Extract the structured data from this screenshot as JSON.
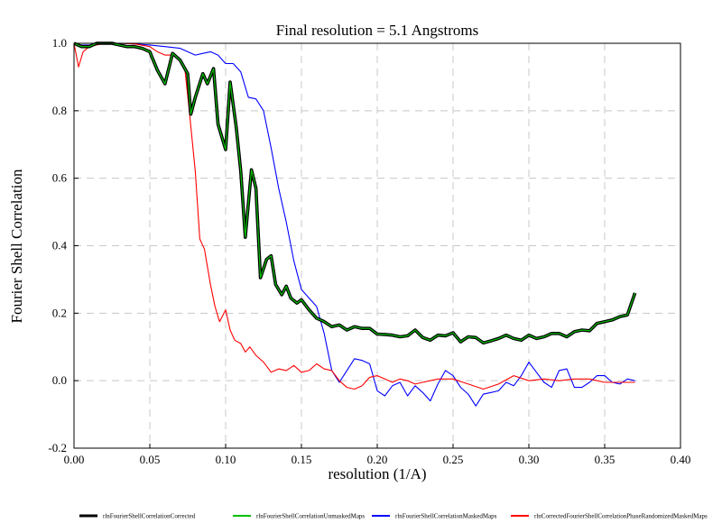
{
  "chart_data": {
    "type": "line",
    "title": "Final resolution =   5.1 Angstroms",
    "xlabel": "resolution (1/A)",
    "ylabel": "Fourier Shell Correlation",
    "xlim": [
      0.0,
      0.4
    ],
    "ylim": [
      -0.2,
      1.0
    ],
    "xticks": [
      "0.00",
      "0.05",
      "0.10",
      "0.15",
      "0.20",
      "0.25",
      "0.30",
      "0.35",
      "0.40"
    ],
    "yticks": [
      "-0.2",
      "0.0",
      "0.2",
      "0.4",
      "0.6",
      "0.8",
      "1.0"
    ],
    "grid": true,
    "legend_placement": "bottom",
    "series": [
      {
        "name": "rlnFourierShellCorrelationCorrected",
        "color": "#000000",
        "x": [
          0.0,
          0.005,
          0.01,
          0.015,
          0.02,
          0.025,
          0.03,
          0.035,
          0.04,
          0.045,
          0.05,
          0.055,
          0.06,
          0.065,
          0.07,
          0.075,
          0.077,
          0.08,
          0.085,
          0.088,
          0.092,
          0.095,
          0.1,
          0.103,
          0.107,
          0.11,
          0.113,
          0.117,
          0.12,
          0.123,
          0.127,
          0.13,
          0.133,
          0.137,
          0.14,
          0.143,
          0.147,
          0.15,
          0.155,
          0.16,
          0.165,
          0.17,
          0.175,
          0.18,
          0.185,
          0.19,
          0.195,
          0.2,
          0.205,
          0.21,
          0.215,
          0.22,
          0.225,
          0.23,
          0.235,
          0.24,
          0.245,
          0.25,
          0.255,
          0.26,
          0.265,
          0.27,
          0.275,
          0.28,
          0.285,
          0.29,
          0.295,
          0.3,
          0.305,
          0.31,
          0.315,
          0.32,
          0.325,
          0.33,
          0.335,
          0.34,
          0.345,
          0.35,
          0.355,
          0.36,
          0.365,
          0.37
        ],
        "values": [
          1.0,
          0.99,
          0.99,
          1.0,
          1.0,
          1.0,
          0.995,
          0.99,
          0.99,
          0.985,
          0.975,
          0.92,
          0.88,
          0.97,
          0.95,
          0.91,
          0.79,
          0.84,
          0.91,
          0.88,
          0.925,
          0.76,
          0.685,
          0.885,
          0.75,
          0.62,
          0.425,
          0.625,
          0.57,
          0.305,
          0.36,
          0.37,
          0.285,
          0.255,
          0.28,
          0.245,
          0.23,
          0.24,
          0.21,
          0.185,
          0.175,
          0.16,
          0.165,
          0.15,
          0.16,
          0.155,
          0.155,
          0.138,
          0.137,
          0.135,
          0.13,
          0.133,
          0.15,
          0.128,
          0.12,
          0.135,
          0.133,
          0.142,
          0.115,
          0.13,
          0.128,
          0.112,
          0.118,
          0.125,
          0.135,
          0.125,
          0.12,
          0.135,
          0.125,
          0.13,
          0.14,
          0.14,
          0.13,
          0.145,
          0.15,
          0.148,
          0.17,
          0.175,
          0.18,
          0.19,
          0.195,
          0.26
        ]
      },
      {
        "name": "rlnFourierShellCorrelationUnmaskedMaps",
        "color": "#00c000",
        "x": [
          0.0,
          0.005,
          0.01,
          0.015,
          0.02,
          0.025,
          0.03,
          0.035,
          0.04,
          0.045,
          0.05,
          0.055,
          0.06,
          0.065,
          0.07,
          0.075,
          0.077,
          0.08,
          0.085,
          0.088,
          0.092,
          0.095,
          0.1,
          0.103,
          0.107,
          0.11,
          0.113,
          0.117,
          0.12,
          0.123,
          0.127,
          0.13,
          0.133,
          0.137,
          0.14,
          0.143,
          0.147,
          0.15,
          0.155,
          0.16,
          0.165,
          0.17,
          0.175,
          0.18,
          0.185,
          0.19,
          0.195,
          0.2,
          0.205,
          0.21,
          0.215,
          0.22,
          0.225,
          0.23,
          0.235,
          0.24,
          0.245,
          0.25,
          0.255,
          0.26,
          0.265,
          0.27,
          0.275,
          0.28,
          0.285,
          0.29,
          0.295,
          0.3,
          0.305,
          0.31,
          0.315,
          0.32,
          0.325,
          0.33,
          0.335,
          0.34,
          0.345,
          0.35,
          0.355,
          0.36,
          0.365,
          0.37
        ],
        "values": [
          1.0,
          0.99,
          0.99,
          1.0,
          1.0,
          1.0,
          0.995,
          0.99,
          0.99,
          0.985,
          0.975,
          0.92,
          0.88,
          0.97,
          0.95,
          0.91,
          0.79,
          0.84,
          0.91,
          0.88,
          0.925,
          0.76,
          0.685,
          0.885,
          0.75,
          0.62,
          0.425,
          0.625,
          0.57,
          0.305,
          0.36,
          0.37,
          0.285,
          0.255,
          0.28,
          0.245,
          0.23,
          0.24,
          0.21,
          0.185,
          0.175,
          0.16,
          0.165,
          0.15,
          0.16,
          0.155,
          0.155,
          0.138,
          0.137,
          0.135,
          0.13,
          0.133,
          0.15,
          0.128,
          0.12,
          0.135,
          0.133,
          0.142,
          0.115,
          0.13,
          0.128,
          0.112,
          0.118,
          0.125,
          0.135,
          0.125,
          0.12,
          0.135,
          0.125,
          0.13,
          0.14,
          0.14,
          0.13,
          0.145,
          0.15,
          0.148,
          0.17,
          0.175,
          0.18,
          0.19,
          0.195,
          0.26
        ]
      },
      {
        "name": "rlnFourierShellCorrelationMaskedMaps",
        "color": "#0000ff",
        "x": [
          0.0,
          0.005,
          0.01,
          0.02,
          0.03,
          0.04,
          0.05,
          0.06,
          0.07,
          0.075,
          0.08,
          0.085,
          0.09,
          0.095,
          0.1,
          0.105,
          0.11,
          0.115,
          0.12,
          0.125,
          0.13,
          0.135,
          0.14,
          0.145,
          0.15,
          0.155,
          0.16,
          0.165,
          0.17,
          0.175,
          0.18,
          0.185,
          0.19,
          0.195,
          0.2,
          0.205,
          0.21,
          0.215,
          0.22,
          0.225,
          0.23,
          0.235,
          0.24,
          0.245,
          0.25,
          0.255,
          0.26,
          0.265,
          0.27,
          0.275,
          0.28,
          0.285,
          0.29,
          0.295,
          0.3,
          0.305,
          0.31,
          0.315,
          0.32,
          0.325,
          0.33,
          0.335,
          0.34,
          0.345,
          0.35,
          0.355,
          0.36,
          0.365,
          0.37
        ],
        "values": [
          1.0,
          0.995,
          0.995,
          1.0,
          1.0,
          0.998,
          0.995,
          0.99,
          0.985,
          0.975,
          0.965,
          0.97,
          0.975,
          0.965,
          0.94,
          0.94,
          0.915,
          0.84,
          0.835,
          0.8,
          0.69,
          0.57,
          0.47,
          0.355,
          0.27,
          0.245,
          0.22,
          0.14,
          0.03,
          -0.005,
          0.03,
          0.065,
          0.06,
          0.05,
          -0.03,
          -0.045,
          -0.015,
          -0.005,
          -0.045,
          -0.015,
          -0.035,
          -0.06,
          -0.01,
          0.03,
          0.015,
          -0.02,
          -0.04,
          -0.075,
          -0.04,
          -0.035,
          -0.03,
          -0.005,
          -0.015,
          0.015,
          0.055,
          0.025,
          -0.005,
          -0.02,
          0.03,
          0.035,
          -0.02,
          -0.02,
          -0.005,
          0.015,
          0.015,
          -0.005,
          -0.01,
          0.005,
          0.0
        ]
      },
      {
        "name": "rlnCorrectedFourierShellCorrelationPhaseRandomizedMaskedMaps",
        "color": "#ff0000",
        "x": [
          0.0,
          0.003,
          0.006,
          0.01,
          0.02,
          0.03,
          0.04,
          0.05,
          0.055,
          0.06,
          0.065,
          0.07,
          0.073,
          0.076,
          0.08,
          0.083,
          0.086,
          0.09,
          0.093,
          0.096,
          0.1,
          0.103,
          0.106,
          0.11,
          0.113,
          0.116,
          0.12,
          0.125,
          0.13,
          0.135,
          0.14,
          0.145,
          0.15,
          0.155,
          0.16,
          0.165,
          0.17,
          0.175,
          0.18,
          0.185,
          0.19,
          0.195,
          0.2,
          0.205,
          0.21,
          0.215,
          0.22,
          0.225,
          0.23,
          0.24,
          0.25,
          0.26,
          0.27,
          0.28,
          0.29,
          0.3,
          0.31,
          0.32,
          0.33,
          0.34,
          0.35,
          0.36,
          0.37
        ],
        "values": [
          1.0,
          0.93,
          0.975,
          0.99,
          1.0,
          1.0,
          0.998,
          0.99,
          0.975,
          0.965,
          0.965,
          0.95,
          0.93,
          0.8,
          0.62,
          0.42,
          0.39,
          0.285,
          0.22,
          0.175,
          0.21,
          0.15,
          0.12,
          0.11,
          0.085,
          0.1,
          0.075,
          0.055,
          0.025,
          0.035,
          0.03,
          0.045,
          0.025,
          0.03,
          0.05,
          0.035,
          0.03,
          0.0,
          -0.02,
          -0.025,
          -0.015,
          0.01,
          0.015,
          0.005,
          -0.005,
          0.005,
          0.0,
          -0.01,
          -0.005,
          0.005,
          0.005,
          -0.01,
          -0.025,
          -0.01,
          0.015,
          0.0,
          0.005,
          0.0,
          0.005,
          0.005,
          -0.005,
          -0.005,
          -0.005
        ]
      }
    ]
  }
}
